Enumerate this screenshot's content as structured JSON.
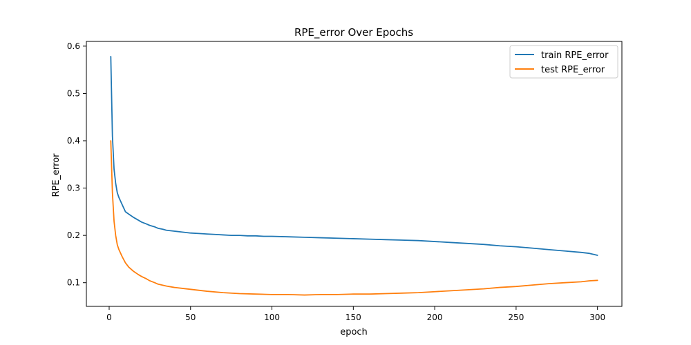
{
  "chart_data": {
    "type": "line",
    "title": "RPE_error Over Epochs",
    "xlabel": "epoch",
    "ylabel": "RPE_error",
    "xlim": [
      -14,
      315
    ],
    "ylim": [
      0.05,
      0.61
    ],
    "xticks": [
      0,
      50,
      100,
      150,
      200,
      250,
      300
    ],
    "yticks": [
      0.1,
      0.2,
      0.3,
      0.4,
      0.5,
      0.6
    ],
    "ytick_labels": [
      "0.1",
      "0.2",
      "0.3",
      "0.4",
      "0.5",
      "0.6"
    ],
    "grid": false,
    "legend_position": "top-right",
    "series": [
      {
        "name": "train RPE_error",
        "color": "#1f77b4",
        "x": [
          1,
          2,
          3,
          4,
          5,
          6,
          8,
          10,
          12,
          15,
          18,
          20,
          23,
          25,
          28,
          30,
          33,
          35,
          40,
          45,
          50,
          55,
          60,
          65,
          70,
          75,
          80,
          85,
          90,
          95,
          100,
          110,
          120,
          130,
          140,
          150,
          160,
          170,
          180,
          190,
          200,
          210,
          220,
          230,
          240,
          250,
          260,
          270,
          280,
          290,
          295,
          300
        ],
        "y": [
          0.578,
          0.41,
          0.34,
          0.31,
          0.29,
          0.28,
          0.265,
          0.25,
          0.245,
          0.238,
          0.232,
          0.228,
          0.224,
          0.221,
          0.218,
          0.215,
          0.213,
          0.211,
          0.209,
          0.207,
          0.205,
          0.204,
          0.203,
          0.202,
          0.201,
          0.2,
          0.2,
          0.199,
          0.199,
          0.198,
          0.198,
          0.197,
          0.196,
          0.195,
          0.194,
          0.193,
          0.192,
          0.191,
          0.19,
          0.189,
          0.187,
          0.185,
          0.183,
          0.181,
          0.178,
          0.176,
          0.173,
          0.17,
          0.167,
          0.164,
          0.162,
          0.158
        ]
      },
      {
        "name": "test RPE_error",
        "color": "#ff7f0e",
        "x": [
          1,
          2,
          3,
          4,
          5,
          6,
          8,
          10,
          12,
          15,
          18,
          20,
          23,
          25,
          28,
          30,
          35,
          40,
          45,
          50,
          60,
          70,
          80,
          90,
          100,
          110,
          120,
          130,
          140,
          150,
          160,
          170,
          180,
          190,
          200,
          210,
          220,
          230,
          240,
          250,
          260,
          270,
          280,
          290,
          295,
          300
        ],
        "y": [
          0.4,
          0.29,
          0.23,
          0.2,
          0.18,
          0.17,
          0.155,
          0.142,
          0.133,
          0.124,
          0.117,
          0.113,
          0.108,
          0.104,
          0.1,
          0.097,
          0.093,
          0.09,
          0.088,
          0.086,
          0.082,
          0.079,
          0.077,
          0.076,
          0.075,
          0.075,
          0.074,
          0.075,
          0.075,
          0.076,
          0.076,
          0.077,
          0.078,
          0.079,
          0.081,
          0.083,
          0.085,
          0.087,
          0.09,
          0.092,
          0.095,
          0.098,
          0.1,
          0.102,
          0.104,
          0.105
        ]
      }
    ]
  }
}
